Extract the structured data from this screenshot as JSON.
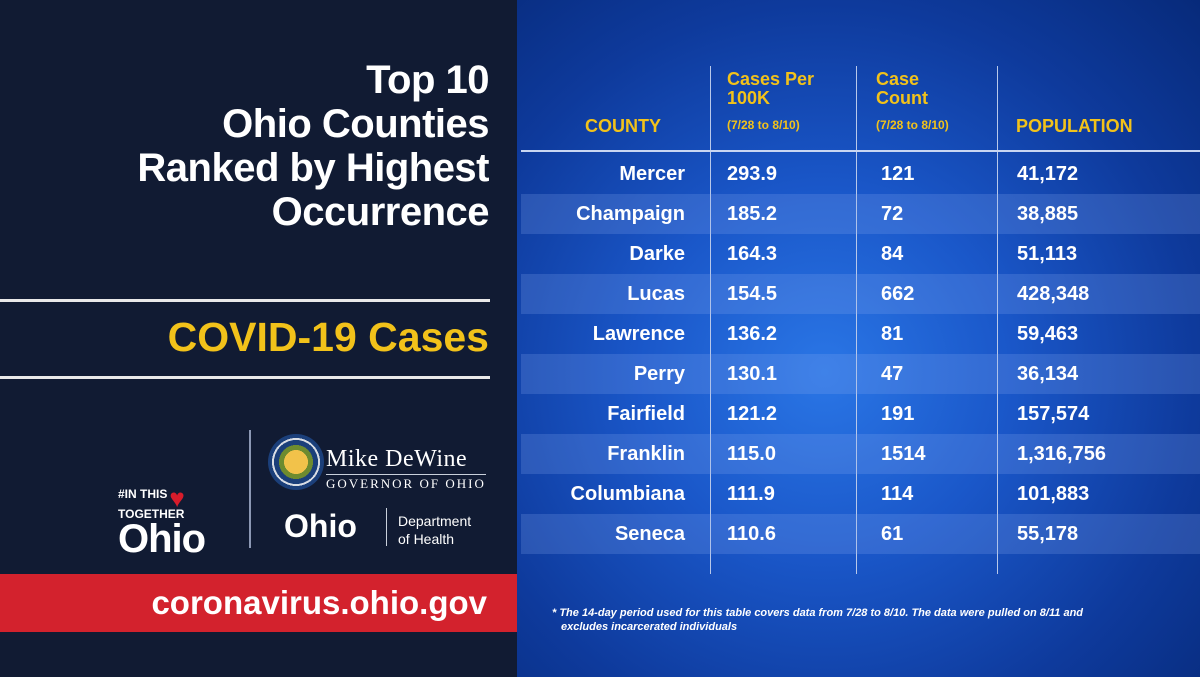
{
  "title": {
    "lines": [
      "Top 10",
      "Ohio Counties",
      "Ranked by Highest",
      "Occurrence"
    ]
  },
  "subtitle": "COVID-19 Cases",
  "logos": {
    "together_top": "#IN THIS",
    "together_middle": "TOGETHER",
    "together_ohio": "Ohio",
    "governor_name": "Mike DeWine",
    "governor_role": "GOVERNOR OF OHIO",
    "health_ohio": "Ohio",
    "health_line1": "Department",
    "health_line2": "of Health"
  },
  "url": "coronavirus.ohio.gov",
  "table": {
    "headers": {
      "county": "COUNTY",
      "rate_line1": "Cases Per",
      "rate_line2": "100K",
      "rate_period": "(7/28 to 8/10)",
      "count_line1": "Case",
      "count_line2": "Count",
      "count_period": "(7/28 to 8/10)",
      "population": "POPULATION"
    },
    "rows": [
      {
        "county": "Mercer",
        "rate": "293.9",
        "count": "121",
        "population": "41,172"
      },
      {
        "county": "Champaign",
        "rate": "185.2",
        "count": "72",
        "population": "38,885"
      },
      {
        "county": "Darke",
        "rate": "164.3",
        "count": "84",
        "population": "51,113"
      },
      {
        "county": "Lucas",
        "rate": "154.5",
        "count": "662",
        "population": "428,348"
      },
      {
        "county": "Lawrence",
        "rate": "136.2",
        "count": "81",
        "population": "59,463"
      },
      {
        "county": "Perry",
        "rate": "130.1",
        "count": "47",
        "population": "36,134"
      },
      {
        "county": "Fairfield",
        "rate": "121.2",
        "count": "191",
        "population": "157,574"
      },
      {
        "county": "Franklin",
        "rate": "115.0",
        "count": "1514",
        "population": "1,316,756"
      },
      {
        "county": "Columbiana",
        "rate": "111.9",
        "count": "114",
        "population": "101,883"
      },
      {
        "county": "Seneca",
        "rate": "110.6",
        "count": "61",
        "population": "55,178"
      }
    ]
  },
  "footnote_line1": "* The 14-day period used for this table covers data from 7/28 to 8/10. The data were pulled on 8/11 and",
  "footnote_line2": "excludes incarcerated individuals",
  "colors": {
    "navy": "#111b33",
    "gold": "#f2c21a",
    "red": "#d3222d",
    "blue": "#1a57c9"
  }
}
